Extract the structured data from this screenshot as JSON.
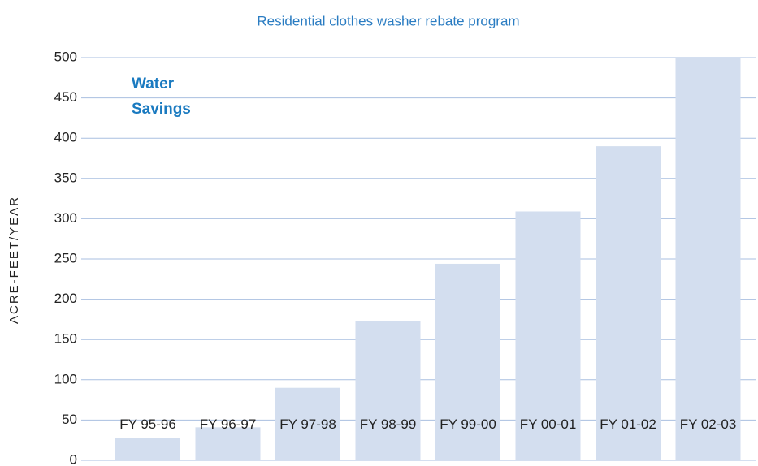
{
  "chart_data": {
    "type": "bar",
    "title": "Residential clothes washer rebate program",
    "y_label": "ACRE-FEET/YEAR",
    "annotation": "Water Savings",
    "categories": [
      "FY 95-96",
      "FY 96-97",
      "FY 97-98",
      "FY 98-99",
      "FY 99-00",
      "FY 00-01",
      "FY 01-02",
      "FY 02-03"
    ],
    "values": [
      28,
      41,
      90,
      173,
      244,
      309,
      390,
      500
    ],
    "color": "#d3deef",
    "ylim": [
      0,
      500
    ],
    "yticks": [
      0,
      50,
      100,
      150,
      200,
      250,
      300,
      350,
      400,
      450,
      500
    ],
    "grid": true
  }
}
